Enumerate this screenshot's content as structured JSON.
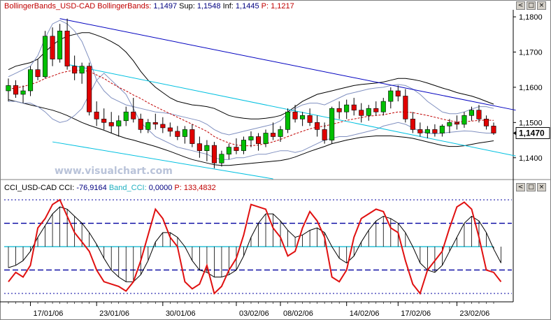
{
  "price_panel": {
    "header": {
      "name": "BollingerBands_USD-CAD",
      "indicator": "BollingerBands",
      "value": "1,1497",
      "sup_label": "Sup:",
      "sup": "1,1548",
      "inf_label": "Inf:",
      "inf": "1,1445",
      "p_label": "P:",
      "p": "1,1217"
    },
    "current_price": "1,1470",
    "y_ticks": [
      "1,1800",
      "1,1700",
      "1,1600",
      "1,1500",
      "1,1400"
    ],
    "watermark": "www.visualchart.com"
  },
  "cci_panel": {
    "header": {
      "name": "CCI_USD-CAD",
      "cci_label": "CCI:",
      "cci": "-76,9164",
      "band_label": "Band_CCI:",
      "band": "0,0000",
      "p_label": "P:",
      "p": "133,4832"
    }
  },
  "x_ticks": [
    "17/01/06",
    "23/01/06",
    "30/01/06",
    "03/02/06",
    "08/02/06",
    "14/02/06",
    "17/02/06",
    "23/02/06"
  ],
  "window_buttons": [
    "<",
    "□",
    "×"
  ],
  "colors": {
    "up": "#00c000",
    "down": "#e00000",
    "trend_main": "#0000c0",
    "channel": "#00c0e0",
    "band_inner": "#8090c0",
    "band_outer": "#000000",
    "ma": "#c00000",
    "cci_line": "#e01010",
    "cci_ma": "#000000",
    "band_cci": "#60d0e0",
    "level_lines": "#0000a0"
  },
  "chart_data": [
    {
      "type": "candlestick",
      "title": "BollingerBands_USD-CAD",
      "ylim": [
        1.134,
        1.182
      ],
      "ohlc": [
        [
          1.159,
          1.1625,
          1.156,
          1.1605
        ],
        [
          1.1605,
          1.162,
          1.157,
          1.158
        ],
        [
          1.158,
          1.1605,
          1.1555,
          1.159
        ],
        [
          1.159,
          1.166,
          1.1575,
          1.165
        ],
        [
          1.165,
          1.168,
          1.162,
          1.163
        ],
        [
          1.163,
          1.176,
          1.1625,
          1.1745
        ],
        [
          1.1745,
          1.177,
          1.166,
          1.168
        ],
        [
          1.168,
          1.178,
          1.167,
          1.176
        ],
        [
          1.176,
          1.1795,
          1.165,
          1.166
        ],
        [
          1.166,
          1.169,
          1.162,
          1.164
        ],
        [
          1.164,
          1.167,
          1.161,
          1.166
        ],
        [
          1.166,
          1.167,
          1.152,
          1.153
        ],
        [
          1.153,
          1.156,
          1.149,
          1.151
        ],
        [
          1.151,
          1.154,
          1.148,
          1.15
        ],
        [
          1.15,
          1.153,
          1.147,
          1.149
        ],
        [
          1.149,
          1.152,
          1.146,
          1.1505
        ],
        [
          1.1505,
          1.1545,
          1.149,
          1.153
        ],
        [
          1.153,
          1.157,
          1.15,
          1.151
        ],
        [
          1.151,
          1.1525,
          1.147,
          1.148
        ],
        [
          1.148,
          1.151,
          1.147,
          1.15
        ],
        [
          1.15,
          1.1525,
          1.148,
          1.1495
        ],
        [
          1.1495,
          1.1515,
          1.147,
          1.1485
        ],
        [
          1.1485,
          1.15,
          1.146,
          1.1475
        ],
        [
          1.1475,
          1.149,
          1.145,
          1.146
        ],
        [
          1.146,
          1.149,
          1.144,
          1.148
        ],
        [
          1.148,
          1.1495,
          1.143,
          1.144
        ],
        [
          1.144,
          1.146,
          1.14,
          1.142
        ],
        [
          1.142,
          1.145,
          1.139,
          1.1435
        ],
        [
          1.1435,
          1.1445,
          1.137,
          1.1385
        ],
        [
          1.1385,
          1.142,
          1.1375,
          1.141
        ],
        [
          1.141,
          1.144,
          1.1395,
          1.143
        ],
        [
          1.143,
          1.1455,
          1.141,
          1.142
        ],
        [
          1.142,
          1.146,
          1.141,
          1.145
        ],
        [
          1.145,
          1.1475,
          1.143,
          1.146
        ],
        [
          1.146,
          1.147,
          1.142,
          1.144
        ],
        [
          1.144,
          1.148,
          1.143,
          1.147
        ],
        [
          1.147,
          1.15,
          1.145,
          1.146
        ],
        [
          1.146,
          1.149,
          1.1445,
          1.148
        ],
        [
          1.148,
          1.154,
          1.147,
          1.153
        ],
        [
          1.153,
          1.155,
          1.15,
          1.151
        ],
        [
          1.151,
          1.153,
          1.149,
          1.152
        ],
        [
          1.152,
          1.154,
          1.149,
          1.15
        ],
        [
          1.15,
          1.152,
          1.146,
          1.148
        ],
        [
          1.148,
          1.15,
          1.144,
          1.145
        ],
        [
          1.145,
          1.1545,
          1.144,
          1.154
        ],
        [
          1.154,
          1.156,
          1.151,
          1.153
        ],
        [
          1.153,
          1.1565,
          1.151,
          1.155
        ],
        [
          1.155,
          1.157,
          1.152,
          1.1535
        ],
        [
          1.1535,
          1.1555,
          1.15,
          1.152
        ],
        [
          1.152,
          1.155,
          1.1505,
          1.154
        ],
        [
          1.154,
          1.156,
          1.152,
          1.153
        ],
        [
          1.153,
          1.157,
          1.152,
          1.156
        ],
        [
          1.156,
          1.16,
          1.154,
          1.159
        ],
        [
          1.159,
          1.1605,
          1.156,
          1.1575
        ],
        [
          1.1575,
          1.1595,
          1.15,
          1.151
        ],
        [
          1.151,
          1.153,
          1.147,
          1.148
        ],
        [
          1.148,
          1.15,
          1.146,
          1.147
        ],
        [
          1.147,
          1.149,
          1.1455,
          1.148
        ],
        [
          1.148,
          1.1495,
          1.146,
          1.147
        ],
        [
          1.147,
          1.1495,
          1.146,
          1.149
        ],
        [
          1.149,
          1.151,
          1.147,
          1.15
        ],
        [
          1.15,
          1.152,
          1.148,
          1.1495
        ],
        [
          1.1495,
          1.153,
          1.1485,
          1.152
        ],
        [
          1.152,
          1.1545,
          1.1505,
          1.1535
        ],
        [
          1.1535,
          1.155,
          1.15,
          1.151
        ],
        [
          1.151,
          1.152,
          1.148,
          1.149
        ],
        [
          1.149,
          1.15,
          1.1465,
          1.147
        ]
      ],
      "middle_band": [
        1.1595,
        1.1598,
        1.1602,
        1.1608,
        1.1615,
        1.1625,
        1.1632,
        1.164,
        1.1645,
        1.1648,
        1.1648,
        1.1645,
        1.1635,
        1.1625,
        1.1612,
        1.16,
        1.159,
        1.1578,
        1.1568,
        1.1556,
        1.1545,
        1.1535,
        1.1525,
        1.1515,
        1.1505,
        1.1495,
        1.1485,
        1.1475,
        1.146,
        1.145,
        1.1442,
        1.1436,
        1.1434,
        1.1434,
        1.1436,
        1.144,
        1.1445,
        1.1452,
        1.146,
        1.1468,
        1.1475,
        1.1482,
        1.1487,
        1.149,
        1.1495,
        1.15,
        1.1506,
        1.151,
        1.1514,
        1.1518,
        1.152,
        1.1522,
        1.1526,
        1.153,
        1.153,
        1.1528,
        1.1524,
        1.152,
        1.1515,
        1.151,
        1.1505,
        1.1502,
        1.1502,
        1.1504,
        1.1506,
        1.1507,
        1.1506
      ],
      "inner_upper": [
        1.163,
        1.164,
        1.165,
        1.166,
        1.169,
        1.174,
        1.178,
        1.179,
        1.178,
        1.176,
        1.173,
        1.168,
        1.162,
        1.159,
        1.157,
        1.156,
        1.155,
        1.1545,
        1.154,
        1.1535,
        1.153,
        1.1528,
        1.1525,
        1.152,
        1.1515,
        1.151,
        1.1505,
        1.1495,
        1.148,
        1.147,
        1.1465,
        1.147,
        1.1475,
        1.148,
        1.1485,
        1.149,
        1.1495,
        1.1505,
        1.1525,
        1.154,
        1.155,
        1.1555,
        1.1555,
        1.155,
        1.156,
        1.157,
        1.158,
        1.1585,
        1.159,
        1.1595,
        1.1598,
        1.16,
        1.1605,
        1.1608,
        1.1605,
        1.1595,
        1.158,
        1.156,
        1.1545,
        1.153,
        1.1525,
        1.1525,
        1.153,
        1.1538,
        1.1545,
        1.1545,
        1.154
      ],
      "inner_lower": [
        1.156,
        1.156,
        1.1555,
        1.1555,
        1.1545,
        1.153,
        1.151,
        1.15,
        1.1505,
        1.152,
        1.154,
        1.158,
        1.162,
        1.164,
        1.162,
        1.16,
        1.158,
        1.154,
        1.15,
        1.148,
        1.146,
        1.145,
        1.144,
        1.143,
        1.1425,
        1.142,
        1.1415,
        1.141,
        1.14,
        1.1395,
        1.1395,
        1.14,
        1.14,
        1.1405,
        1.141,
        1.141,
        1.1415,
        1.142,
        1.142,
        1.1415,
        1.142,
        1.143,
        1.144,
        1.145,
        1.1455,
        1.146,
        1.146,
        1.1465,
        1.147,
        1.1475,
        1.148,
        1.149,
        1.1495,
        1.15,
        1.1495,
        1.1485,
        1.1475,
        1.147,
        1.1468,
        1.147,
        1.1472,
        1.1474,
        1.1476,
        1.1475,
        1.1472,
        1.147,
        1.147
      ],
      "outer_upper": [
        1.165,
        1.166,
        1.1665,
        1.167,
        1.168,
        1.17,
        1.172,
        1.1735,
        1.1745,
        1.175,
        1.1755,
        1.1755,
        1.1748,
        1.174,
        1.173,
        1.1718,
        1.17,
        1.1675,
        1.1645,
        1.162,
        1.16,
        1.1585,
        1.157,
        1.156,
        1.1555,
        1.155,
        1.1548,
        1.1545,
        1.154,
        1.153,
        1.152,
        1.1515,
        1.1512,
        1.151,
        1.151,
        1.1512,
        1.1515,
        1.152,
        1.153,
        1.1545,
        1.156,
        1.157,
        1.158,
        1.1585,
        1.159,
        1.1595,
        1.16,
        1.1605,
        1.1608,
        1.161,
        1.1612,
        1.1615,
        1.162,
        1.1625,
        1.1625,
        1.1622,
        1.1618,
        1.1612,
        1.1605,
        1.1598,
        1.1592,
        1.1585,
        1.158,
        1.1575,
        1.1568,
        1.156,
        1.1552
      ],
      "outer_lower": [
        1.1565,
        1.156,
        1.1555,
        1.155,
        1.1545,
        1.154,
        1.1535,
        1.1528,
        1.152,
        1.151,
        1.15,
        1.1492,
        1.1485,
        1.1478,
        1.147,
        1.1462,
        1.1455,
        1.145,
        1.1444,
        1.1438,
        1.1432,
        1.1425,
        1.1418,
        1.141,
        1.1402,
        1.1395,
        1.139,
        1.1385,
        1.138,
        1.1378,
        1.1378,
        1.138,
        1.1382,
        1.1384,
        1.1386,
        1.1388,
        1.139,
        1.1392,
        1.1396,
        1.1402,
        1.141,
        1.1418,
        1.1425,
        1.1432,
        1.144,
        1.1445,
        1.145,
        1.1454,
        1.1458,
        1.146,
        1.1462,
        1.1462,
        1.1462,
        1.146,
        1.1458,
        1.1455,
        1.145,
        1.1445,
        1.144,
        1.1435,
        1.1432,
        1.1432,
        1.1434,
        1.1438,
        1.1442,
        1.1445,
        1.1448
      ]
    },
    {
      "type": "line",
      "title": "CCI_USD-CAD",
      "ylim": [
        -230,
        230
      ],
      "levels": [
        200,
        100,
        0,
        -100,
        -200
      ],
      "cci": [
        -150,
        -110,
        -130,
        -80,
        80,
        120,
        180,
        200,
        130,
        60,
        20,
        -20,
        -100,
        -150,
        -160,
        -170,
        -190,
        -150,
        -60,
        50,
        160,
        120,
        40,
        0,
        -150,
        -180,
        -160,
        -80,
        -200,
        -170,
        -100,
        -50,
        50,
        180,
        170,
        160,
        80,
        40,
        -40,
        -20,
        80,
        150,
        110,
        40,
        -130,
        -150,
        -100,
        40,
        120,
        140,
        160,
        150,
        80,
        60,
        -60,
        -160,
        -200,
        -100,
        -60,
        -20,
        80,
        170,
        190,
        160,
        40,
        -100,
        -110,
        -150
      ],
      "cci_average": [
        -90,
        -80,
        -60,
        -20,
        40,
        90,
        140,
        170,
        160,
        130,
        100,
        60,
        10,
        -50,
        -100,
        -130,
        -150,
        -150,
        -120,
        -60,
        20,
        60,
        60,
        40,
        0,
        -60,
        -100,
        -110,
        -130,
        -130,
        -120,
        -100,
        -40,
        40,
        100,
        140,
        140,
        110,
        70,
        40,
        50,
        70,
        80,
        60,
        0,
        -50,
        -70,
        -40,
        20,
        70,
        110,
        130,
        120,
        100,
        60,
        0,
        -70,
        -100,
        -110,
        -80,
        -20,
        40,
        100,
        130,
        110,
        60,
        -10,
        -70
      ]
    }
  ]
}
